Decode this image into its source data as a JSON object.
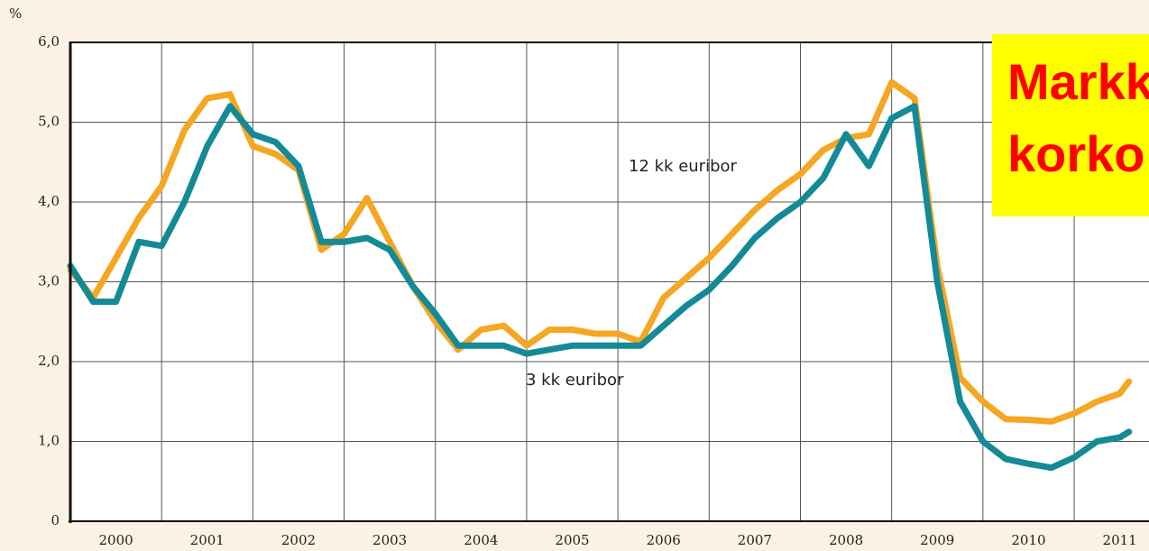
{
  "chart_data": {
    "type": "line",
    "unit_label": "%",
    "title_lines": [
      "Markk",
      "korko"
    ],
    "annotations": [
      "12 kk euribor",
      "3 kk euribor"
    ],
    "x": [
      2000,
      2000.25,
      2000.5,
      2000.75,
      2001,
      2001.25,
      2001.5,
      2001.75,
      2002,
      2002.25,
      2002.5,
      2002.75,
      2003,
      2003.25,
      2003.5,
      2003.75,
      2004,
      2004.25,
      2004.5,
      2004.75,
      2005,
      2005.25,
      2005.5,
      2005.75,
      2006,
      2006.25,
      2006.5,
      2006.75,
      2007,
      2007.25,
      2007.5,
      2007.75,
      2008,
      2008.25,
      2008.5,
      2008.75,
      2009,
      2009.25,
      2009.5,
      2009.75,
      2010,
      2010.25,
      2010.5,
      2010.75,
      2011,
      2011.25,
      2011.5,
      2011.6
    ],
    "series": [
      {
        "name": "12 kk euribor",
        "color": "#f5a623",
        "values": [
          3.15,
          2.8,
          3.3,
          3.8,
          4.2,
          4.9,
          5.3,
          5.35,
          4.7,
          4.6,
          4.4,
          3.4,
          3.6,
          4.05,
          3.5,
          2.95,
          2.5,
          2.15,
          2.4,
          2.45,
          2.2,
          2.4,
          2.4,
          2.35,
          2.35,
          2.25,
          2.8,
          3.05,
          3.3,
          3.6,
          3.9,
          4.15,
          4.35,
          4.65,
          4.8,
          4.85,
          5.5,
          5.3,
          3.2,
          1.8,
          1.5,
          1.28,
          1.27,
          1.25,
          1.35,
          1.5,
          1.6,
          1.75
        ]
      },
      {
        "name": "3 kk euribor",
        "color": "#138a96",
        "values": [
          3.2,
          2.75,
          2.75,
          3.5,
          3.45,
          4.0,
          4.7,
          5.2,
          4.85,
          4.75,
          4.45,
          3.5,
          3.5,
          3.55,
          3.4,
          2.95,
          2.6,
          2.2,
          2.2,
          2.2,
          2.1,
          2.15,
          2.2,
          2.2,
          2.2,
          2.2,
          2.45,
          2.7,
          2.9,
          3.2,
          3.55,
          3.8,
          4.0,
          4.3,
          4.85,
          4.45,
          5.05,
          5.2,
          3.0,
          1.5,
          1.0,
          0.78,
          0.72,
          0.67,
          0.8,
          1.0,
          1.05,
          1.12
        ]
      }
    ],
    "xlim": [
      2000,
      2011.8
    ],
    "xticks": [
      2000,
      2001,
      2002,
      2003,
      2004,
      2005,
      2006,
      2007,
      2008,
      2009,
      2010,
      2011
    ],
    "ylim": [
      0,
      6
    ],
    "yticks": [
      0,
      {
        "value": 1,
        "label": "1,0"
      },
      {
        "value": 2,
        "label": "2,0"
      },
      {
        "value": 3,
        "label": "3,0"
      },
      {
        "value": 4,
        "label": "4,0"
      },
      {
        "value": 5,
        "label": "5,0"
      },
      {
        "value": 6,
        "label": "6,0"
      }
    ],
    "grid": true
  }
}
